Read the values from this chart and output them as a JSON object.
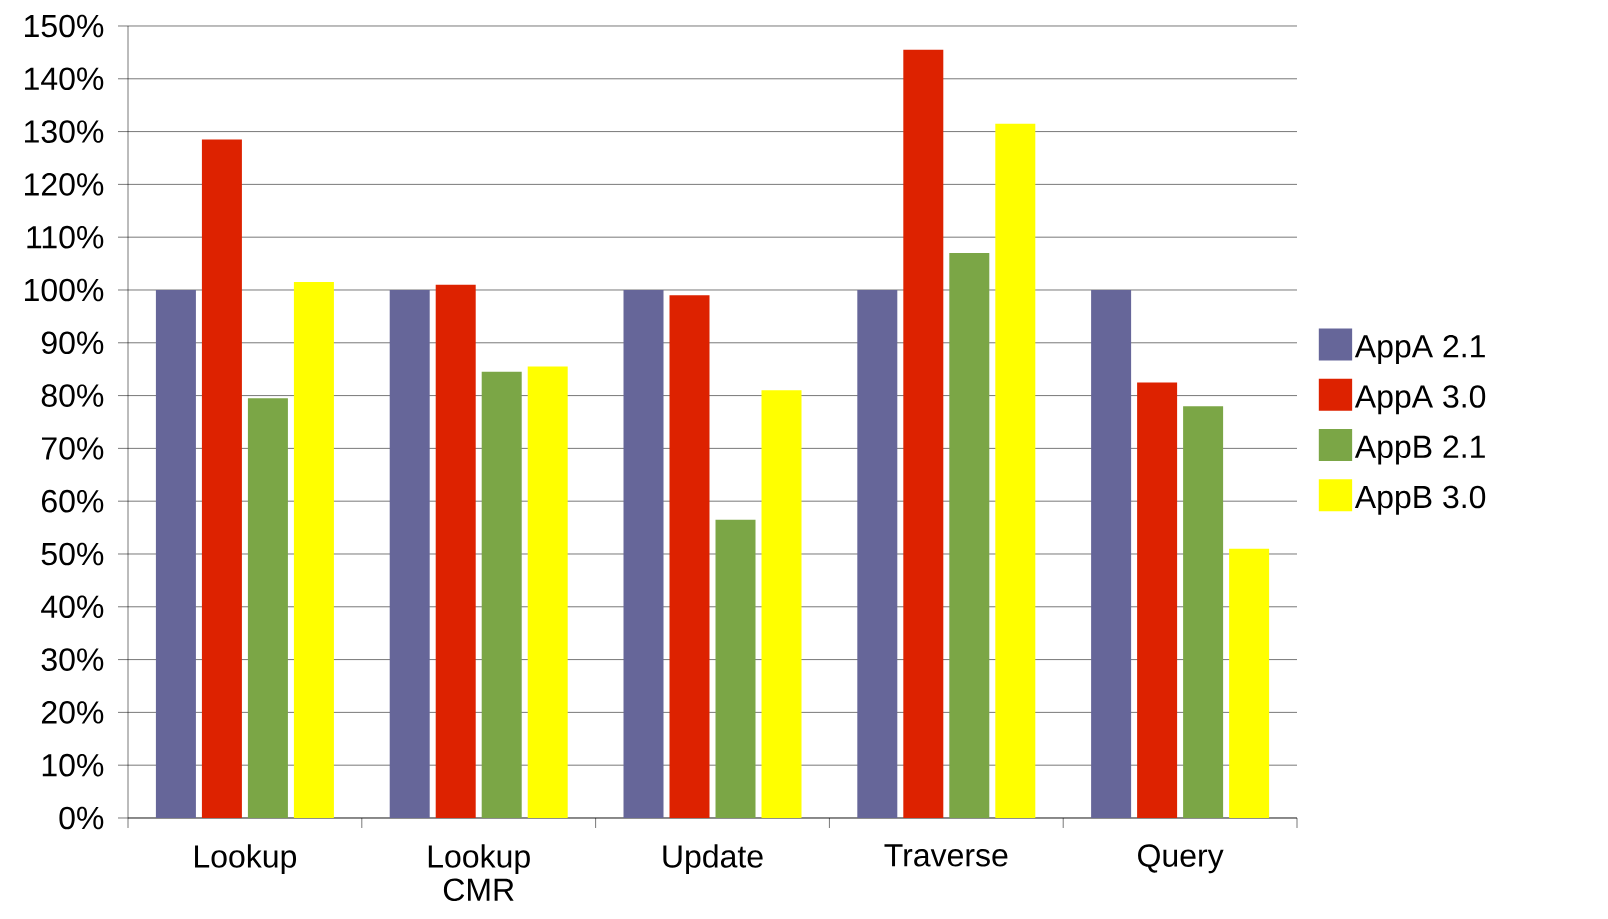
{
  "chart_data": {
    "type": "bar",
    "categories": [
      "Lookup",
      "Lookup CMR",
      "Update",
      "Traverse",
      "Query"
    ],
    "series": [
      {
        "name": "AppA 2.1",
        "color": "#666699",
        "values": [
          100,
          100,
          100,
          100,
          100
        ]
      },
      {
        "name": "AppA 3.0",
        "color": "#dd2200",
        "values": [
          128.5,
          101,
          99,
          145.5,
          82.5
        ]
      },
      {
        "name": "AppB 2.1",
        "color": "#7ba646",
        "values": [
          79.5,
          84.5,
          56.5,
          107,
          78
        ]
      },
      {
        "name": "AppB 3.0",
        "color": "#ffff00",
        "values": [
          101.5,
          85.5,
          81,
          131.5,
          51
        ]
      }
    ],
    "ylim": [
      0,
      150
    ],
    "yticks": [
      {
        "value": 0,
        "label": "0%"
      },
      {
        "value": 10,
        "label": "10%"
      },
      {
        "value": 20,
        "label": "20%"
      },
      {
        "value": 30,
        "label": "30%"
      },
      {
        "value": 40,
        "label": "40%"
      },
      {
        "value": 50,
        "label": "50%"
      },
      {
        "value": 60,
        "label": "60%"
      },
      {
        "value": 70,
        "label": "70%"
      },
      {
        "value": 80,
        "label": "80%"
      },
      {
        "value": 90,
        "label": "90%"
      },
      {
        "value": 100,
        "label": "100%"
      },
      {
        "value": 110,
        "label": "110%"
      },
      {
        "value": 120,
        "label": "120%"
      },
      {
        "value": 130,
        "label": "130%"
      },
      {
        "value": 140,
        "label": "140%"
      },
      {
        "value": 150,
        "label": "150%"
      }
    ],
    "grid": "y",
    "legend": "right"
  }
}
